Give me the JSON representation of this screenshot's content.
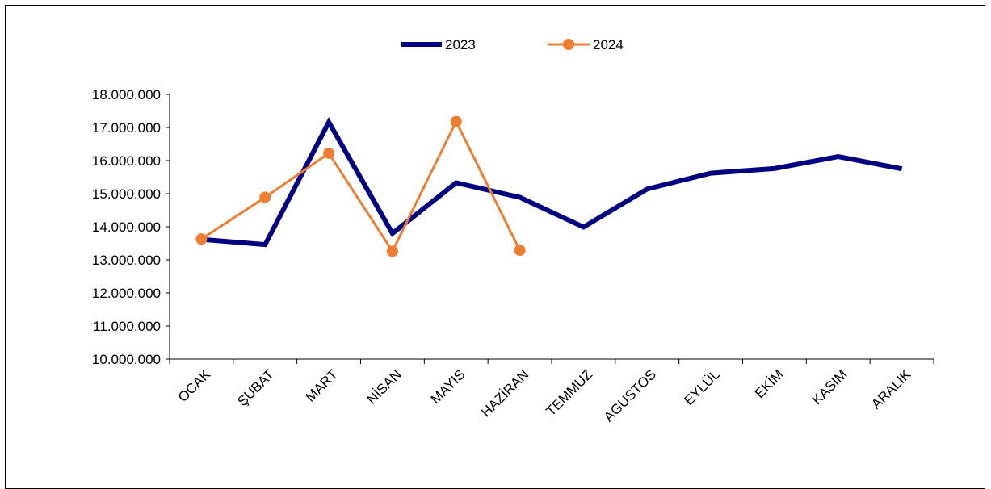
{
  "chart_data": {
    "type": "line",
    "categories": [
      "OCAK",
      "ŞUBAT",
      "MART",
      "NİSAN",
      "MAYIS",
      "HAZİRAN",
      "TEMMUZ",
      "AGUSTOS",
      "EYLÜL",
      "EKİM",
      "KASIM",
      "ARALIK"
    ],
    "series": [
      {
        "name": "2023",
        "color": "#000080",
        "marker": "none",
        "values": [
          13620000,
          13460000,
          17160000,
          13800000,
          15330000,
          14890000,
          13990000,
          15140000,
          15620000,
          15760000,
          16120000,
          15750000
        ]
      },
      {
        "name": "2024",
        "color": "#ED7D31",
        "marker": "circle",
        "values": [
          13630000,
          14890000,
          16220000,
          13260000,
          17180000,
          13290000,
          null,
          null,
          null,
          null,
          null,
          null
        ]
      }
    ],
    "ylim": [
      10000000,
      18000000
    ],
    "yticks": [
      "10.000.000",
      "11.000.000",
      "12.000.000",
      "13.000.000",
      "14.000.000",
      "15.000.000",
      "16.000.000",
      "17.000.000",
      "18.000.000"
    ],
    "title": "",
    "xlabel": "",
    "ylabel": "",
    "grid": false,
    "legend": "top-center"
  }
}
